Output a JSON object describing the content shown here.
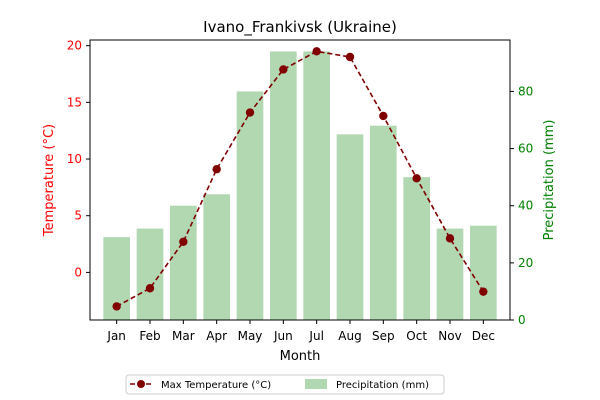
{
  "chart_data": {
    "type": "bar+line",
    "title": "Ivano_Frankivsk (Ukraine)",
    "xlabel": "Month",
    "ylabel_left": "Temperature (°C)",
    "ylabel_right": "Precipitation (mm)",
    "categories": [
      "Jan",
      "Feb",
      "Mar",
      "Apr",
      "May",
      "Jun",
      "Jul",
      "Aug",
      "Sep",
      "Oct",
      "Nov",
      "Dec"
    ],
    "ylim_left": [
      -4.2,
      20.5
    ],
    "ylim_right": [
      0,
      98
    ],
    "yticks_left": [
      0,
      5,
      10,
      15,
      20
    ],
    "yticks_right": [
      0,
      20,
      40,
      60,
      80
    ],
    "grid": false,
    "legend_position": "bottom-center",
    "series": [
      {
        "name": "Max Temperature (°C)",
        "kind": "line",
        "axis": "left",
        "color": "#800000",
        "style": "dashed-with-circle-markers",
        "values": [
          -3.0,
          -1.4,
          2.7,
          9.1,
          14.1,
          17.9,
          19.5,
          19.0,
          13.8,
          8.3,
          3.0,
          -1.7
        ]
      },
      {
        "name": "Precipitation (mm)",
        "kind": "bar",
        "axis": "right",
        "color": "#b2d8b2",
        "values": [
          29,
          32,
          40,
          44,
          80,
          94,
          94,
          65,
          68,
          50,
          32,
          33
        ]
      }
    ],
    "colors": {
      "left_axis": "#ff0000",
      "right_axis": "#008000",
      "line": "#800000",
      "bar": "#b2d8b2"
    }
  }
}
